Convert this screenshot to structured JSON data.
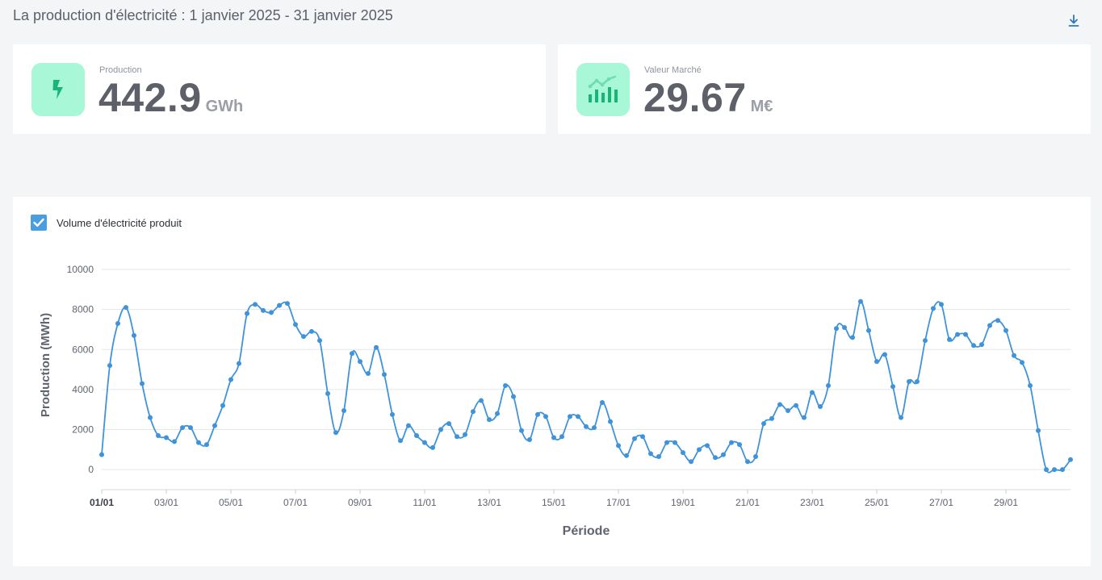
{
  "page": {
    "title": "La production d'électricité : 1 janvier 2025 - 31 janvier 2025",
    "download_icon": "download-icon"
  },
  "kpis": [
    {
      "label": "Production",
      "value": "442.9",
      "unit": "GWh",
      "icon": "lightning-bolt-icon",
      "icon_bg": "#a8f7d6",
      "icon_color": "#18b577"
    },
    {
      "label": "Valeur Marché",
      "value": "29.67",
      "unit": "M€",
      "icon": "bar-line-chart-icon",
      "icon_bg": "#a8f7d6",
      "icon_color": "#18b577"
    }
  ],
  "chart_data": {
    "type": "line",
    "legend": "Volume d'électricité produit",
    "legend_checked": true,
    "xlabel": "Période",
    "ylabel": "Production (MWh)",
    "ylim": [
      -1000,
      10000
    ],
    "yticks": [
      0,
      2000,
      4000,
      6000,
      8000,
      10000
    ],
    "xticks": [
      "01/01",
      "03/01",
      "05/01",
      "07/01",
      "09/01",
      "11/01",
      "13/01",
      "15/01",
      "17/01",
      "19/01",
      "21/01",
      "23/01",
      "25/01",
      "27/01",
      "29/01"
    ],
    "xlim": [
      0,
      30
    ],
    "x_interval_days": 0.25,
    "grid": true,
    "color": "#3f93da",
    "values": [
      750,
      5200,
      7300,
      8100,
      6700,
      4300,
      2600,
      1700,
      1600,
      1400,
      2100,
      2100,
      1350,
      1250,
      2200,
      3200,
      4500,
      5300,
      7800,
      8250,
      7950,
      7850,
      8200,
      8300,
      7250,
      6650,
      6900,
      6450,
      3800,
      1850,
      2950,
      5800,
      5400,
      4800,
      6100,
      4750,
      2750,
      1450,
      2200,
      1700,
      1350,
      1100,
      2000,
      2300,
      1650,
      1750,
      2900,
      3450,
      2500,
      2800,
      4200,
      3650,
      1950,
      1500,
      2750,
      2650,
      1600,
      1650,
      2650,
      2650,
      2150,
      2100,
      3350,
      2400,
      1200,
      700,
      1550,
      1650,
      800,
      650,
      1350,
      1350,
      850,
      400,
      1000,
      1200,
      600,
      750,
      1350,
      1250,
      400,
      650,
      2300,
      2550,
      3250,
      2950,
      3200,
      2600,
      3850,
      3150,
      4200,
      7050,
      7100,
      6600,
      8400,
      6950,
      5400,
      5750,
      4150,
      2600,
      4400,
      4400,
      6450,
      8050,
      8250,
      6500,
      6750,
      6750,
      6200,
      6250,
      7200,
      7450,
      6950,
      5700,
      5350,
      4200,
      1950,
      0,
      0,
      0,
      500
    ]
  }
}
